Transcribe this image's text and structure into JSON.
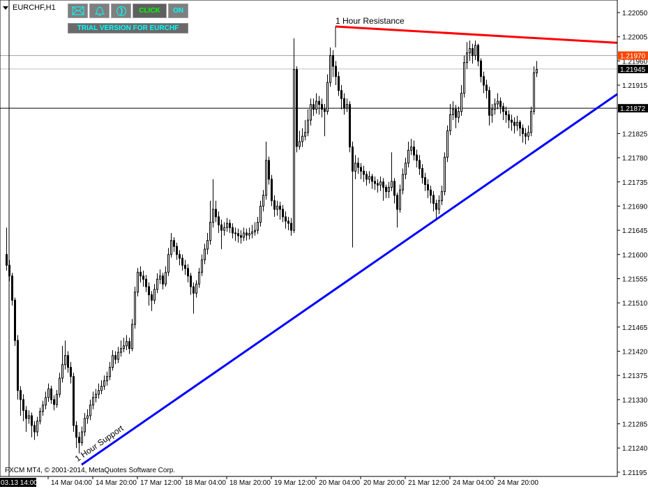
{
  "header": {
    "symbol_label": "EURCHF,H1"
  },
  "toolbar": {
    "buttons": [
      {
        "icon": "mail-icon"
      },
      {
        "icon": "bell-icon"
      },
      {
        "icon": "phone-icon"
      },
      {
        "label": "CLICK",
        "color": "#00ff00"
      },
      {
        "label": "ON",
        "color": "#00ffff"
      }
    ],
    "trial_label": "TRIAL VERSION FOR EURCHF"
  },
  "footer": {
    "copyright": "FXCM MT4, © 2001-2014, MetaQuotes Software Corp."
  },
  "chart_data": {
    "type": "candlestick",
    "symbol": "EURCHF",
    "timeframe": "H1",
    "ylim": [
      1.21195,
      1.2205
    ],
    "y_ticks": [
      "1.22050",
      "1.22005",
      "1.21960",
      "1.21915",
      "1.21825",
      "1.21780",
      "1.21735",
      "1.21690",
      "1.21645",
      "1.21600",
      "1.21555",
      "1.21510",
      "1.21465",
      "1.21420",
      "1.21375",
      "1.21330",
      "1.21285",
      "1.21240",
      "1.21195"
    ],
    "x_ticks": [
      "14 Mar 04:00",
      "14 Mar 20:00",
      "17 Mar 12:00",
      "18 Mar 04:00",
      "18 Mar 20:00",
      "19 Mar 12:00",
      "20 Mar 04:00",
      "20 Mar 20:00",
      "21 Mar 12:00",
      "24 Mar 04:00",
      "24 Mar 20:00"
    ],
    "crosshair": {
      "time_label": "03.13 14:00",
      "price": 1.21872,
      "price_label": "1.21872"
    },
    "price_lines": [
      {
        "price": 1.2197,
        "label": "1.21970",
        "label_bg": "#ff4500",
        "line": "#a0a0a0"
      },
      {
        "price": 1.21945,
        "label": "1.21945",
        "label_bg": "#000000",
        "line": "#c0c0c0"
      }
    ],
    "trendlines": [
      {
        "label": "1 Hour Resistance",
        "color": "#ff0000",
        "from": {
          "candle": 118,
          "price": 1.22024
        },
        "to": {
          "candle": 168,
          "price": 1.22009
        },
        "ray": true
      },
      {
        "label": "1 Hour Support",
        "color": "#0000ff",
        "from": {
          "candle": 27,
          "price": 1.21209
        },
        "to": {
          "candle": 188,
          "price": 1.21787
        },
        "ray": true
      }
    ],
    "candles": [
      [
        1.216,
        1.2165,
        1.2157,
        1.2158
      ],
      [
        1.2158,
        1.2159,
        1.2155,
        1.2156
      ],
      [
        1.2156,
        1.21566,
        1.21505,
        1.21515
      ],
      [
        1.21515,
        1.2152,
        1.2143,
        1.2144
      ],
      [
        1.2144,
        1.2145,
        1.2133,
        1.21347
      ],
      [
        1.21347,
        1.21355,
        1.213,
        1.2133
      ],
      [
        1.2133,
        1.2134,
        1.2129,
        1.2131
      ],
      [
        1.2131,
        1.21318,
        1.2127,
        1.21295
      ],
      [
        1.21295,
        1.2131,
        1.21285,
        1.213
      ],
      [
        1.213,
        1.21306,
        1.2126,
        1.21282
      ],
      [
        1.21282,
        1.2129,
        1.21255,
        1.2127
      ],
      [
        1.2127,
        1.21298,
        1.21262,
        1.2129
      ],
      [
        1.2129,
        1.21315,
        1.21284,
        1.21308
      ],
      [
        1.21308,
        1.21328,
        1.213,
        1.2132
      ],
      [
        1.2132,
        1.21345,
        1.21312,
        1.21334
      ],
      [
        1.21334,
        1.2136,
        1.21326,
        1.2135
      ],
      [
        1.2135,
        1.21356,
        1.21322,
        1.2133
      ],
      [
        1.2133,
        1.21338,
        1.2131,
        1.21321
      ],
      [
        1.21321,
        1.21348,
        1.21315,
        1.2134
      ],
      [
        1.2134,
        1.2138,
        1.21334,
        1.2137
      ],
      [
        1.2137,
        1.2143,
        1.21362,
        1.21395
      ],
      [
        1.21395,
        1.2144,
        1.21386,
        1.21412
      ],
      [
        1.21412,
        1.2142,
        1.2138,
        1.2139
      ],
      [
        1.2139,
        1.214,
        1.2136,
        1.21373
      ],
      [
        1.21373,
        1.2138,
        1.2127,
        1.21282
      ],
      [
        1.21282,
        1.2129,
        1.2124,
        1.2126
      ],
      [
        1.2126,
        1.2127,
        1.2123,
        1.2125
      ],
      [
        1.2125,
        1.2128,
        1.21244,
        1.2127
      ],
      [
        1.2127,
        1.21305,
        1.21262,
        1.21295
      ],
      [
        1.21295,
        1.21312,
        1.21285,
        1.213
      ],
      [
        1.213,
        1.2133,
        1.21292,
        1.2132
      ],
      [
        1.2132,
        1.21345,
        1.21312,
        1.21334
      ],
      [
        1.21334,
        1.2135,
        1.21325,
        1.2134
      ],
      [
        1.2134,
        1.2136,
        1.21332,
        1.21347
      ],
      [
        1.21347,
        1.21366,
        1.2134,
        1.21355
      ],
      [
        1.21355,
        1.21375,
        1.21348,
        1.21365
      ],
      [
        1.21365,
        1.21382,
        1.21356,
        1.21373
      ],
      [
        1.21373,
        1.214,
        1.21366,
        1.2139
      ],
      [
        1.2139,
        1.21422,
        1.21384,
        1.21412
      ],
      [
        1.21412,
        1.2142,
        1.21396,
        1.21405
      ],
      [
        1.21405,
        1.21428,
        1.21398,
        1.21418
      ],
      [
        1.21418,
        1.2144,
        1.2141,
        1.21425
      ],
      [
        1.21425,
        1.21445,
        1.21418,
        1.2143
      ],
      [
        1.2143,
        1.2145,
        1.21422,
        1.21438
      ],
      [
        1.21438,
        1.21445,
        1.21415,
        1.21425
      ],
      [
        1.21425,
        1.2148,
        1.2142,
        1.2147
      ],
      [
        1.2147,
        1.2154,
        1.21462,
        1.2153
      ],
      [
        1.2153,
        1.21575,
        1.21522,
        1.21567
      ],
      [
        1.21567,
        1.21578,
        1.21548,
        1.2156
      ],
      [
        1.2156,
        1.2157,
        1.2154,
        1.21554
      ],
      [
        1.21554,
        1.21562,
        1.2153,
        1.2154
      ],
      [
        1.2154,
        1.21548,
        1.21505,
        1.21525
      ],
      [
        1.21525,
        1.21532,
        1.21495,
        1.21515
      ],
      [
        1.21515,
        1.21545,
        1.21508,
        1.21535
      ],
      [
        1.21535,
        1.21565,
        1.21528,
        1.21554
      ],
      [
        1.21554,
        1.21572,
        1.21545,
        1.2156
      ],
      [
        1.2156,
        1.21566,
        1.21535,
        1.21545
      ],
      [
        1.21545,
        1.21578,
        1.2154,
        1.21567
      ],
      [
        1.21567,
        1.21612,
        1.2156,
        1.216
      ],
      [
        1.216,
        1.2164,
        1.21594,
        1.21626
      ],
      [
        1.21626,
        1.21632,
        1.21605,
        1.21615
      ],
      [
        1.21615,
        1.21622,
        1.2159,
        1.216
      ],
      [
        1.216,
        1.21608,
        1.2158,
        1.21593
      ],
      [
        1.21593,
        1.216,
        1.2157,
        1.2158
      ],
      [
        1.2158,
        1.2159,
        1.21562,
        1.21574
      ],
      [
        1.21574,
        1.21582,
        1.21548,
        1.2156
      ],
      [
        1.2156,
        1.21566,
        1.21525,
        1.2154
      ],
      [
        1.2154,
        1.21548,
        1.2149,
        1.21528
      ],
      [
        1.21528,
        1.21552,
        1.2152,
        1.21545
      ],
      [
        1.21545,
        1.21575,
        1.21538,
        1.21567
      ],
      [
        1.21567,
        1.216,
        1.2156,
        1.2159
      ],
      [
        1.2159,
        1.2162,
        1.21582,
        1.2161
      ],
      [
        1.2161,
        1.2164,
        1.216,
        1.21626
      ],
      [
        1.21626,
        1.217,
        1.21618,
        1.2166
      ],
      [
        1.2166,
        1.2174,
        1.2165,
        1.21684
      ],
      [
        1.21684,
        1.217,
        1.2166,
        1.2167
      ],
      [
        1.2167,
        1.2168,
        1.2164,
        1.21655
      ],
      [
        1.21655,
        1.21665,
        1.2161,
        1.21645
      ],
      [
        1.21645,
        1.2166,
        1.21635,
        1.2165
      ],
      [
        1.2165,
        1.21668,
        1.21642,
        1.21658
      ],
      [
        1.21658,
        1.21665,
        1.2164,
        1.2165
      ],
      [
        1.2165,
        1.21658,
        1.2163,
        1.2164
      ],
      [
        1.2164,
        1.2165,
        1.21625,
        1.21639
      ],
      [
        1.21639,
        1.21648,
        1.21622,
        1.21635
      ],
      [
        1.21635,
        1.21645,
        1.2162,
        1.21632
      ],
      [
        1.21632,
        1.2165,
        1.21625,
        1.2164
      ],
      [
        1.2164,
        1.21648,
        1.21626,
        1.21636
      ],
      [
        1.21636,
        1.2165,
        1.21628,
        1.21639
      ],
      [
        1.21639,
        1.21655,
        1.2163,
        1.21642
      ],
      [
        1.21642,
        1.2166,
        1.21635,
        1.21645
      ],
      [
        1.21645,
        1.2167,
        1.21638,
        1.2166
      ],
      [
        1.2166,
        1.217,
        1.21652,
        1.2169
      ],
      [
        1.2169,
        1.2172,
        1.2168,
        1.2171
      ],
      [
        1.2171,
        1.2181,
        1.21702,
        1.21775
      ],
      [
        1.21775,
        1.21782,
        1.2173,
        1.2174
      ],
      [
        1.2174,
        1.21748,
        1.2169,
        1.217
      ],
      [
        1.217,
        1.2171,
        1.2167,
        1.21684
      ],
      [
        1.21684,
        1.217,
        1.21672,
        1.2169
      ],
      [
        1.2169,
        1.21698,
        1.21665,
        1.21684
      ],
      [
        1.21684,
        1.21692,
        1.2166,
        1.2167
      ],
      [
        1.2167,
        1.2168,
        1.21648,
        1.21662
      ],
      [
        1.21662,
        1.2167,
        1.21645,
        1.21658
      ],
      [
        1.21658,
        1.21668,
        1.21635,
        1.21645
      ],
      [
        1.21645,
        1.22002,
        1.2164,
        1.21944
      ],
      [
        1.21944,
        1.2195,
        1.2179,
        1.21801
      ],
      [
        1.21801,
        1.2183,
        1.21795,
        1.2181
      ],
      [
        1.2181,
        1.21835,
        1.218,
        1.2182
      ],
      [
        1.2182,
        1.2185,
        1.21812,
        1.21827
      ],
      [
        1.21827,
        1.2187,
        1.2182,
        1.2185
      ],
      [
        1.2185,
        1.2189,
        1.2184,
        1.21879
      ],
      [
        1.21879,
        1.2189,
        1.21858,
        1.2187
      ],
      [
        1.2187,
        1.219,
        1.21862,
        1.21885
      ],
      [
        1.21885,
        1.21895,
        1.2186,
        1.21879
      ],
      [
        1.21879,
        1.2189,
        1.21855,
        1.2187
      ],
      [
        1.2187,
        1.2188,
        1.2182,
        1.21866
      ],
      [
        1.21866,
        1.21935,
        1.2186,
        1.2192
      ],
      [
        1.2192,
        1.21985,
        1.21912,
        1.2197
      ],
      [
        1.2197,
        1.2198,
        1.2193,
        1.2195
      ],
      [
        1.2195,
        1.2196,
        1.21915,
        1.21931
      ],
      [
        1.21931,
        1.2194,
        1.21895,
        1.21905
      ],
      [
        1.21905,
        1.21915,
        1.2187,
        1.2189
      ],
      [
        1.2189,
        1.219,
        1.2186,
        1.21872
      ],
      [
        1.21872,
        1.2189,
        1.21865,
        1.21879
      ],
      [
        1.21879,
        1.21885,
        1.2179,
        1.218
      ],
      [
        1.218,
        1.2181,
        1.21613,
        1.21755
      ],
      [
        1.21755,
        1.21785,
        1.2174,
        1.2177
      ],
      [
        1.2177,
        1.2178,
        1.2175,
        1.21762
      ],
      [
        1.21762,
        1.2177,
        1.2174,
        1.21755
      ],
      [
        1.21755,
        1.21765,
        1.21735,
        1.21749
      ],
      [
        1.21749,
        1.21755,
        1.21728,
        1.2174
      ],
      [
        1.2174,
        1.21755,
        1.21732,
        1.21745
      ],
      [
        1.21745,
        1.2175,
        1.21722,
        1.21736
      ],
      [
        1.21736,
        1.21745,
        1.2172,
        1.21732
      ],
      [
        1.21732,
        1.2174,
        1.21715,
        1.21729
      ],
      [
        1.21729,
        1.21745,
        1.21718,
        1.21735
      ],
      [
        1.21735,
        1.21742,
        1.217,
        1.21725
      ],
      [
        1.21725,
        1.2173,
        1.21705,
        1.21717
      ],
      [
        1.21717,
        1.21735,
        1.21705,
        1.21725
      ],
      [
        1.21725,
        1.2179,
        1.21718,
        1.21736
      ],
      [
        1.21736,
        1.21742,
        1.21695,
        1.2171
      ],
      [
        1.2171,
        1.21715,
        1.2165,
        1.21684
      ],
      [
        1.21684,
        1.2173,
        1.21678,
        1.2172
      ],
      [
        1.2172,
        1.2176,
        1.21712,
        1.21749
      ],
      [
        1.21749,
        1.2178,
        1.2174,
        1.2177
      ],
      [
        1.2177,
        1.2181,
        1.21762,
        1.21794
      ],
      [
        1.21794,
        1.21815,
        1.21785,
        1.218
      ],
      [
        1.218,
        1.21812,
        1.21775,
        1.21785
      ],
      [
        1.21785,
        1.21795,
        1.21762,
        1.21775
      ],
      [
        1.21775,
        1.21785,
        1.21748,
        1.2176
      ],
      [
        1.2176,
        1.21768,
        1.21732,
        1.21743
      ],
      [
        1.21743,
        1.21752,
        1.21718,
        1.2173
      ],
      [
        1.2173,
        1.2174,
        1.21705,
        1.2172
      ],
      [
        1.2172,
        1.21728,
        1.21695,
        1.2171
      ],
      [
        1.2171,
        1.21718,
        1.2168,
        1.21695
      ],
      [
        1.21695,
        1.21702,
        1.21665,
        1.21684
      ],
      [
        1.21684,
        1.2171,
        1.21675,
        1.217
      ],
      [
        1.217,
        1.21728,
        1.21692,
        1.21717
      ],
      [
        1.21717,
        1.2179,
        1.2171,
        1.21781
      ],
      [
        1.21781,
        1.2184,
        1.21772,
        1.2183
      ],
      [
        1.2183,
        1.2188,
        1.21822,
        1.2186
      ],
      [
        1.2186,
        1.21885,
        1.2185,
        1.2187
      ],
      [
        1.2187,
        1.21878,
        1.21835,
        1.21855
      ],
      [
        1.21855,
        1.21875,
        1.21845,
        1.21866
      ],
      [
        1.21866,
        1.21915,
        1.21858,
        1.219
      ],
      [
        1.219,
        1.2197,
        1.21892,
        1.21957
      ],
      [
        1.21957,
        1.21995,
        1.21945,
        1.21975
      ],
      [
        1.21975,
        1.21998,
        1.2196,
        1.21983
      ],
      [
        1.21983,
        1.21992,
        1.21955,
        1.2197
      ],
      [
        1.2197,
        1.21998,
        1.21962,
        1.21989
      ],
      [
        1.21989,
        1.21992,
        1.2195,
        1.2196
      ],
      [
        1.2196,
        1.21965,
        1.2192,
        1.21931
      ],
      [
        1.21931,
        1.2194,
        1.219,
        1.21915
      ],
      [
        1.21915,
        1.21925,
        1.2189,
        1.21905
      ],
      [
        1.21905,
        1.21912,
        1.2184,
        1.21859
      ],
      [
        1.21859,
        1.2188,
        1.21845,
        1.2187
      ],
      [
        1.2187,
        1.2189,
        1.2186,
        1.2188
      ],
      [
        1.2188,
        1.219,
        1.2187,
        1.21885
      ],
      [
        1.21885,
        1.21892,
        1.21862,
        1.21875
      ],
      [
        1.21875,
        1.21882,
        1.2185,
        1.21866
      ],
      [
        1.21866,
        1.21875,
        1.21845,
        1.2186
      ],
      [
        1.2186,
        1.21868,
        1.21835,
        1.2185
      ],
      [
        1.2185,
        1.2186,
        1.2183,
        1.21846
      ],
      [
        1.21846,
        1.21855,
        1.21825,
        1.2184
      ],
      [
        1.2184,
        1.21858,
        1.2183,
        1.21846
      ],
      [
        1.21846,
        1.2185,
        1.2182,
        1.21835
      ],
      [
        1.21835,
        1.21842,
        1.21808,
        1.21825
      ],
      [
        1.21825,
        1.21835,
        1.21805,
        1.2182
      ],
      [
        1.2182,
        1.2184,
        1.21812,
        1.21827
      ],
      [
        1.21827,
        1.21875,
        1.2182,
        1.21866
      ],
      [
        1.21866,
        1.2195,
        1.2186,
        1.21938
      ],
      [
        1.21938,
        1.2196,
        1.2193,
        1.21944
      ]
    ]
  }
}
